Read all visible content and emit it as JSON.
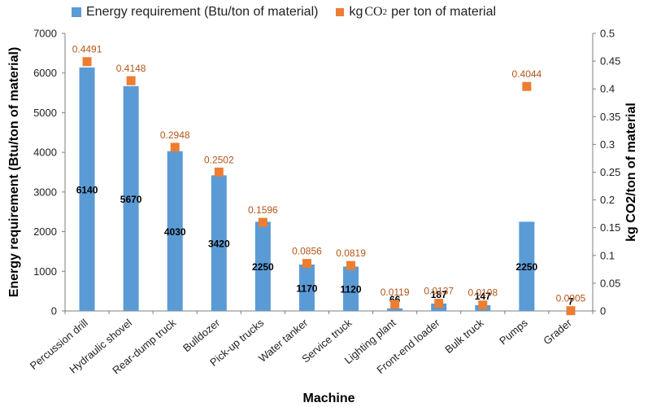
{
  "chart_data": {
    "type": "bar",
    "xlabel": "Machine",
    "ylabel": "Energy requirement  (Btu/ton of material)",
    "y2label": "kg CO2/ton of material",
    "ylim": [
      0,
      7000
    ],
    "y2lim": [
      0,
      0.5
    ],
    "yticks": [
      "0",
      "1000",
      "2000",
      "3000",
      "4000",
      "5000",
      "6000",
      "7000"
    ],
    "y2ticks": [
      "0",
      "0.05",
      "0.1",
      "0.15",
      "0.2",
      "0.25",
      "0.3",
      "0.35",
      "0.4",
      "0.45",
      "0.5"
    ],
    "categories": [
      "Percussion drill",
      "Hydraulic shovel",
      "Rear-dump truck",
      "Bulldozer",
      "Pick-up trucks",
      "Water tanker",
      "Service truck",
      "Lighting plant",
      "Front-end loader",
      "Bulk truck",
      "Pumps",
      "Grader"
    ],
    "series": [
      {
        "name": "Energy requirement (Btu/ton of material)",
        "type": "bar",
        "axis": "left",
        "color": "#5b9bd5",
        "values": [
          6140,
          5670,
          4030,
          3420,
          2250,
          1170,
          1120,
          66,
          187,
          147,
          2250,
          7
        ],
        "labels": [
          "6140",
          "5670",
          "4030",
          "3420",
          "2250",
          "1170",
          "1120",
          "66",
          "187",
          "147",
          "2250",
          "7"
        ]
      },
      {
        "name_prefix": "kg",
        "name_chem": "CO",
        "name_sub": "2",
        "name_suffix": "per ton of material",
        "type": "scatter",
        "axis": "right",
        "color": "#ed7d31",
        "label_color": "#b4541a",
        "values": [
          0.4491,
          0.4148,
          0.2948,
          0.2502,
          0.1596,
          0.0856,
          0.0819,
          0.0119,
          0.0137,
          0.0108,
          0.4044,
          0.0005
        ],
        "labels": [
          "0.4491",
          "0.4148",
          "0.2948",
          "0.2502",
          "0.1596",
          "0.0856",
          "0.0819",
          "0.0119",
          "0.0137",
          "0.0108",
          "0.4044",
          "0.0005"
        ]
      }
    ],
    "legend_position": "top",
    "grid": false
  }
}
